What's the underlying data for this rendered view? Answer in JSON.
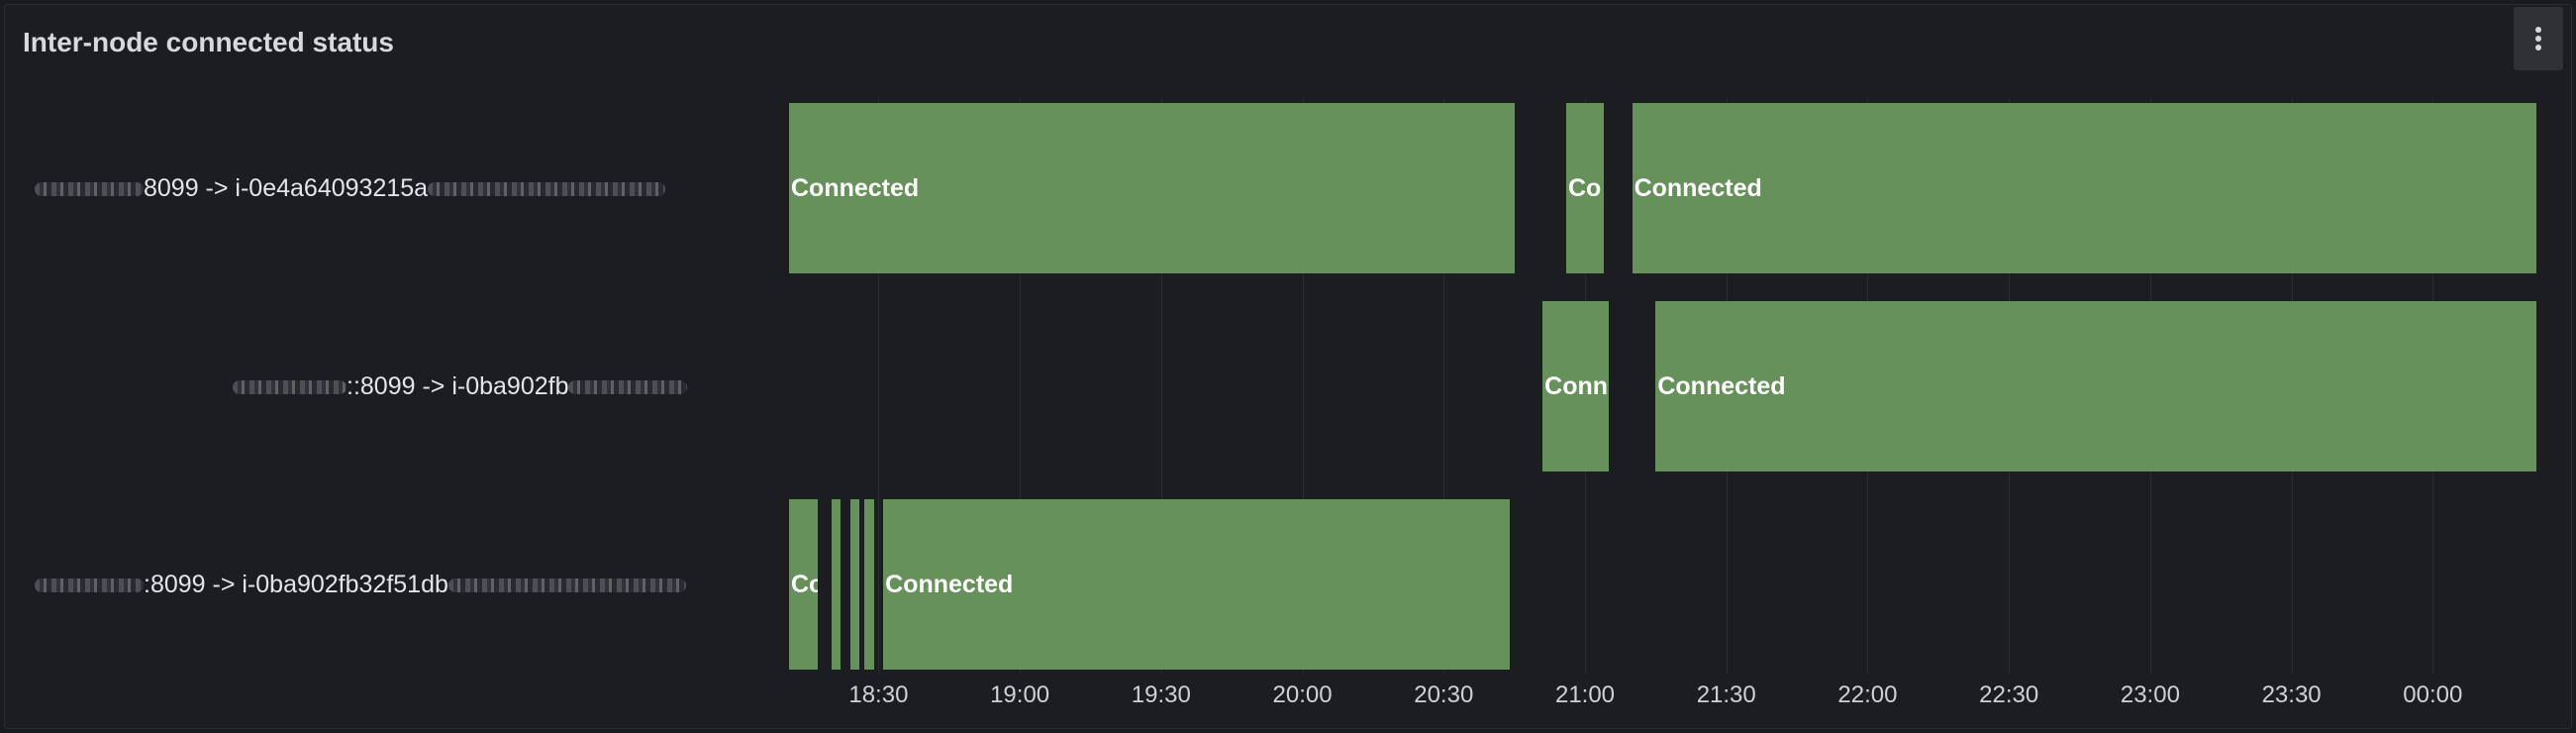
{
  "panel": {
    "title": "Inter-node connected status",
    "menu_icon": "kebab-menu-icon"
  },
  "rows": [
    {
      "label": "8099 -> i-0e4a64093215a",
      "redacted_before": true,
      "redacted_after": true,
      "segments": [
        {
          "state": "Connected",
          "label": "Connected",
          "start": "18:11",
          "end": "20:45"
        },
        {
          "state": "Connected",
          "label": "Co",
          "start": "20:56",
          "end": "21:04"
        },
        {
          "state": "Connected",
          "label": "Connected",
          "start": "21:10",
          "end": "00:22"
        }
      ]
    },
    {
      "label": "::8099 -> i-0ba902fb",
      "redacted_before": true,
      "redacted_after": true,
      "segments": [
        {
          "state": "Connected",
          "label": "Conn",
          "start": "20:51",
          "end": "21:05"
        },
        {
          "state": "Connected",
          "label": "Connected",
          "start": "21:15",
          "end": "00:22"
        }
      ]
    },
    {
      "label": ":8099 -> i-0ba902fb32f51db",
      "redacted_before": true,
      "redacted_after": true,
      "segments": [
        {
          "state": "Connected",
          "label": "Co",
          "start": "18:11",
          "end": "18:17"
        },
        {
          "state": "Connected",
          "label": "",
          "start": "18:20",
          "end": "18:22"
        },
        {
          "state": "Connected",
          "label": "",
          "start": "18:24",
          "end": "18:26"
        },
        {
          "state": "Connected",
          "label": "",
          "start": "18:27",
          "end": "18:29"
        },
        {
          "state": "Connected",
          "label": "Connected",
          "start": "18:31",
          "end": "20:44"
        }
      ]
    }
  ],
  "time_axis": {
    "ticks": [
      "18:30",
      "19:00",
      "19:30",
      "20:00",
      "20:30",
      "21:00",
      "21:30",
      "22:00",
      "22:30",
      "23:00",
      "23:30",
      "00:00"
    ]
  },
  "colors": {
    "connected": "#67915a",
    "background": "#1c1d21",
    "text": "#e4e5e8"
  }
}
